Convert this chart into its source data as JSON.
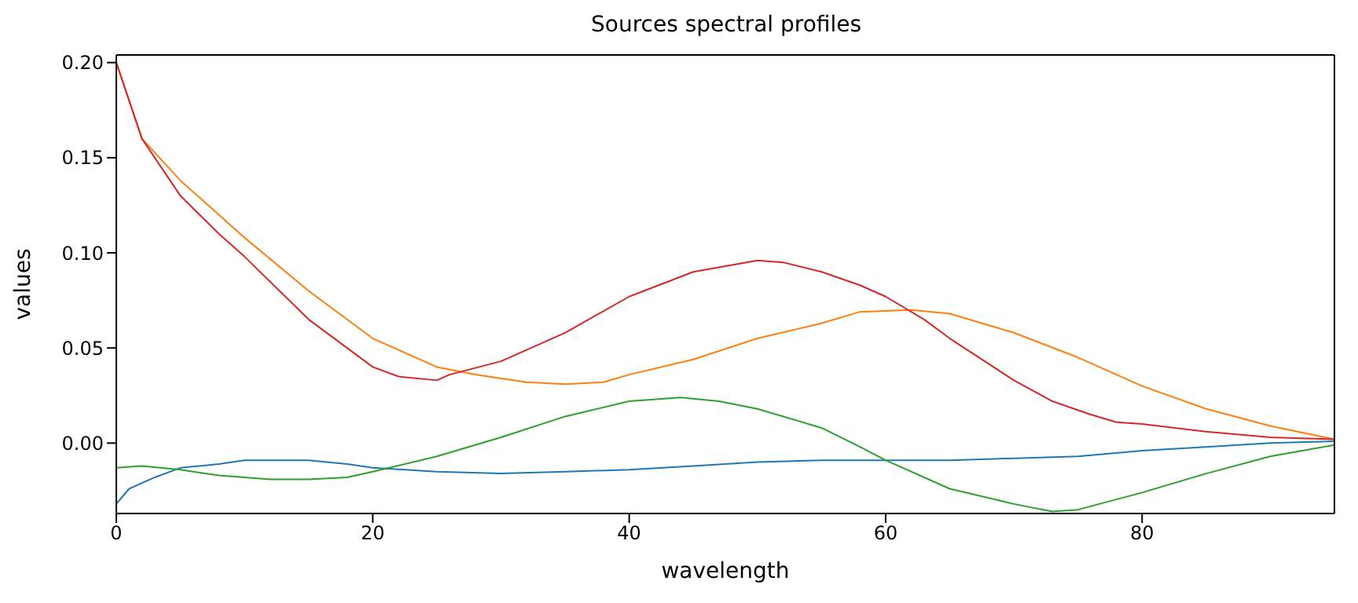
{
  "chart_data": {
    "type": "line",
    "title": "Sources spectral profiles",
    "xlabel": "wavelength",
    "ylabel": "values",
    "xlim": [
      0,
      95
    ],
    "xticks": [
      0,
      20,
      40,
      60,
      80
    ],
    "ylim": [
      -0.037,
      0.204
    ],
    "yticks": [
      {
        "value": 0,
        "label": "0.00"
      },
      {
        "value": 0.05,
        "label": "0.05"
      },
      {
        "value": 0.1,
        "label": "0.10"
      },
      {
        "value": 0.15,
        "label": "0.15"
      },
      {
        "value": 0.2,
        "label": "0.20"
      }
    ],
    "grid": false,
    "marker": "none",
    "line_style": "solid",
    "series": [
      {
        "color": "#1f77b4",
        "x": [
          0,
          1,
          3,
          5,
          8,
          10,
          15,
          18,
          20,
          25,
          30,
          35,
          40,
          45,
          50,
          55,
          60,
          65,
          70,
          75,
          80,
          85,
          90,
          95
        ],
        "values": [
          -0.032,
          -0.024,
          -0.018,
          -0.013,
          -0.011,
          -0.009,
          -0.009,
          -0.011,
          -0.013,
          -0.015,
          -0.016,
          -0.015,
          -0.014,
          -0.012,
          -0.01,
          -0.009,
          -0.009,
          -0.009,
          -0.008,
          -0.007,
          -0.004,
          -0.002,
          0.0,
          0.001
        ]
      },
      {
        "color": "#ff7f0e",
        "x": [
          0,
          2,
          5,
          10,
          15,
          20,
          25,
          28,
          30,
          32,
          35,
          38,
          40,
          45,
          50,
          55,
          58,
          62,
          65,
          70,
          75,
          80,
          85,
          90,
          95
        ],
        "values": [
          0.2,
          0.16,
          0.138,
          0.108,
          0.08,
          0.055,
          0.04,
          0.036,
          0.034,
          0.032,
          0.031,
          0.032,
          0.036,
          0.044,
          0.055,
          0.063,
          0.069,
          0.07,
          0.068,
          0.058,
          0.045,
          0.03,
          0.018,
          0.009,
          0.002
        ]
      },
      {
        "color": "#2ca02c",
        "x": [
          0,
          2,
          5,
          8,
          10,
          12,
          15,
          18,
          20,
          25,
          30,
          35,
          40,
          44,
          47,
          50,
          55,
          58,
          60,
          65,
          70,
          73,
          75,
          80,
          85,
          90,
          95
        ],
        "values": [
          -0.013,
          -0.012,
          -0.014,
          -0.017,
          -0.018,
          -0.019,
          -0.019,
          -0.018,
          -0.015,
          -0.007,
          0.003,
          0.014,
          0.022,
          0.024,
          0.022,
          0.018,
          0.008,
          -0.002,
          -0.009,
          -0.024,
          -0.032,
          -0.036,
          -0.035,
          -0.026,
          -0.016,
          -0.007,
          -0.001
        ]
      },
      {
        "color": "#d62728",
        "x": [
          0,
          2,
          5,
          8,
          10,
          15,
          20,
          22,
          25,
          26,
          30,
          35,
          40,
          45,
          50,
          52,
          55,
          58,
          60,
          63,
          65,
          70,
          73,
          76,
          78,
          80,
          85,
          90,
          95
        ],
        "values": [
          0.2,
          0.16,
          0.13,
          0.11,
          0.098,
          0.065,
          0.04,
          0.035,
          0.033,
          0.036,
          0.043,
          0.058,
          0.077,
          0.09,
          0.096,
          0.095,
          0.09,
          0.083,
          0.077,
          0.065,
          0.055,
          0.033,
          0.022,
          0.015,
          0.011,
          0.01,
          0.006,
          0.003,
          0.002
        ]
      }
    ]
  }
}
